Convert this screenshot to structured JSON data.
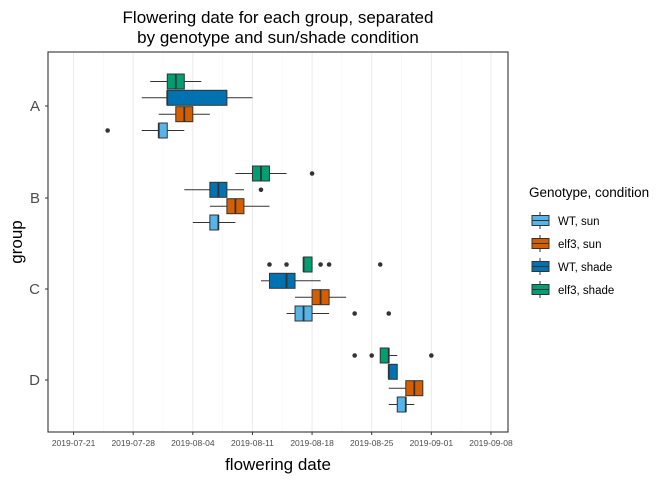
{
  "chart_data": {
    "type": "boxplot",
    "title": "Flowering date for each group, separated\nby genotype and sun/shade condition",
    "xlabel": "flowering date",
    "ylabel": "group",
    "xlim": [
      "2019-07-18",
      "2019-09-10"
    ],
    "x_ticks": [
      "2019-07-21",
      "2019-07-28",
      "2019-08-04",
      "2019-08-11",
      "2019-08-18",
      "2019-08-25",
      "2019-09-01",
      "2019-09-08"
    ],
    "categories": [
      "A",
      "B",
      "C",
      "D"
    ],
    "grid": "vertical major",
    "legend": {
      "title": "Genotype, condition",
      "position": "right"
    },
    "series": [
      {
        "name": "WT, sun",
        "color": "#56B4E9",
        "boxes": {
          "A": {
            "whisker_low": "2019-07-29",
            "q1": "2019-07-31",
            "median": "2019-07-31",
            "q3": "2019-08-01",
            "whisker_high": "2019-08-03",
            "outliers": [
              "2019-07-25"
            ]
          },
          "B": {
            "whisker_low": "2019-08-04",
            "q1": "2019-08-06",
            "median": "2019-08-07",
            "q3": "2019-08-07",
            "whisker_high": "2019-08-09",
            "outliers": []
          },
          "C": {
            "whisker_low": "2019-08-15",
            "q1": "2019-08-16",
            "median": "2019-08-17",
            "q3": "2019-08-18",
            "whisker_high": "2019-08-20",
            "outliers": [
              "2019-08-23",
              "2019-08-27"
            ]
          },
          "D": {
            "whisker_low": "2019-08-27",
            "q1": "2019-08-28",
            "median": "2019-08-29",
            "q3": "2019-08-29",
            "whisker_high": "2019-08-30",
            "outliers": []
          }
        }
      },
      {
        "name": "elf3, sun",
        "color": "#D55E00",
        "boxes": {
          "A": {
            "whisker_low": "2019-07-31",
            "q1": "2019-08-02",
            "median": "2019-08-03",
            "q3": "2019-08-04",
            "whisker_high": "2019-08-06",
            "outliers": []
          },
          "B": {
            "whisker_low": "2019-08-06",
            "q1": "2019-08-08",
            "median": "2019-08-09",
            "q3": "2019-08-10",
            "whisker_high": "2019-08-13",
            "outliers": []
          },
          "C": {
            "whisker_low": "2019-08-16",
            "q1": "2019-08-18",
            "median": "2019-08-19",
            "q3": "2019-08-20",
            "whisker_high": "2019-08-22",
            "outliers": []
          },
          "D": {
            "whisker_low": "2019-08-27",
            "q1": "2019-08-29",
            "median": "2019-08-30",
            "q3": "2019-08-31",
            "whisker_high": "2019-08-31",
            "outliers": []
          }
        }
      },
      {
        "name": "WT, shade",
        "color": "#0072B2",
        "boxes": {
          "A": {
            "whisker_low": "2019-07-29",
            "q1": "2019-08-01",
            "median": "2019-08-01",
            "q3": "2019-08-08",
            "whisker_high": "2019-08-11",
            "outliers": []
          },
          "B": {
            "whisker_low": "2019-08-03",
            "q1": "2019-08-06",
            "median": "2019-08-07",
            "q3": "2019-08-08",
            "whisker_high": "2019-08-10",
            "outliers": [
              "2019-08-12"
            ]
          },
          "C": {
            "whisker_low": "2019-08-12",
            "q1": "2019-08-13",
            "median": "2019-08-15",
            "q3": "2019-08-16",
            "whisker_high": "2019-08-19",
            "outliers": []
          },
          "D": {
            "whisker_low": "2019-08-27",
            "q1": "2019-08-27",
            "median": "2019-08-27",
            "q3": "2019-08-28",
            "whisker_high": "2019-08-28",
            "outliers": []
          }
        }
      },
      {
        "name": "elf3, shade",
        "color": "#009E73",
        "boxes": {
          "A": {
            "whisker_low": "2019-07-30",
            "q1": "2019-08-01",
            "median": "2019-08-02",
            "q3": "2019-08-03",
            "whisker_high": "2019-08-05",
            "outliers": []
          },
          "B": {
            "whisker_low": "2019-08-09",
            "q1": "2019-08-11",
            "median": "2019-08-12",
            "q3": "2019-08-13",
            "whisker_high": "2019-08-15",
            "outliers": [
              "2019-08-18"
            ]
          },
          "C": {
            "whisker_low": "2019-08-17",
            "q1": "2019-08-17",
            "median": "2019-08-17",
            "q3": "2019-08-18",
            "whisker_high": "2019-08-18",
            "outliers": [
              "2019-08-13",
              "2019-08-15",
              "2019-08-19",
              "2019-08-20",
              "2019-08-26"
            ]
          },
          "D": {
            "whisker_low": "2019-08-26",
            "q1": "2019-08-26",
            "median": "2019-08-27",
            "q3": "2019-08-27",
            "whisker_high": "2019-08-28",
            "outliers": [
              "2019-08-23",
              "2019-08-25",
              "2019-09-01"
            ]
          }
        }
      }
    ]
  }
}
